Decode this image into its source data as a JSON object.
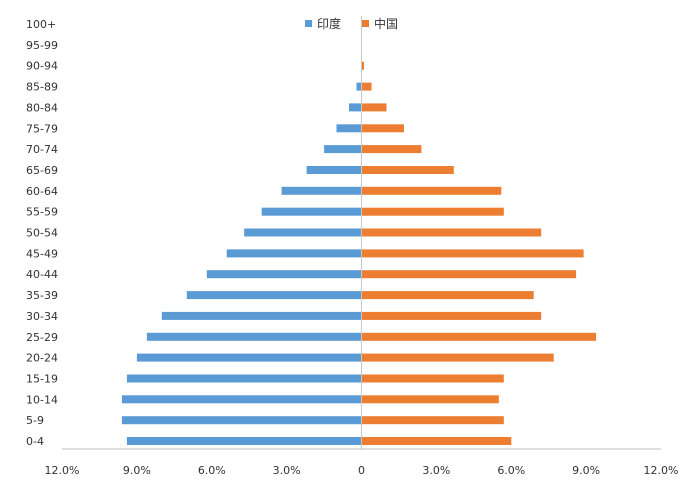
{
  "chart_data": {
    "type": "bar",
    "orientation": "horizontal",
    "categories": [
      "100+",
      "95-99",
      "90-94",
      "85-89",
      "80-84",
      "75-79",
      "70-74",
      "65-69",
      "60-64",
      "55-59",
      "50-54",
      "45-49",
      "40-44",
      "35-39",
      "30-34",
      "25-29",
      "20-24",
      "15-19",
      "10-14",
      "5-9",
      "0-4"
    ],
    "series": [
      {
        "name": "印度",
        "color": "#5b9bd5",
        "values": [
          0.0,
          0.0,
          0.0,
          -0.2,
          -0.5,
          -1.0,
          -1.5,
          -2.2,
          -3.2,
          -4.0,
          -4.7,
          -5.4,
          -6.2,
          -7.0,
          -8.0,
          -8.6,
          -9.0,
          -9.4,
          -9.6,
          -9.6,
          -9.4
        ]
      },
      {
        "name": "中国",
        "color": "#ed7d31",
        "values": [
          0.0,
          0.0,
          0.1,
          0.4,
          1.0,
          1.7,
          2.4,
          3.7,
          5.6,
          5.7,
          7.2,
          8.9,
          8.6,
          6.9,
          7.2,
          9.4,
          7.7,
          5.7,
          5.5,
          5.7,
          6.0
        ]
      }
    ],
    "xlim": [
      -12,
      12
    ],
    "x_ticks": [
      -12,
      -9,
      -6,
      -3,
      0,
      3,
      6,
      9,
      12
    ],
    "x_tick_labels": [
      "12.0%",
      "9.0%",
      "6.0%",
      "3.0%",
      "0",
      "3.0%",
      "6.0%",
      "9.0%",
      "12.0%"
    ],
    "legend_position": "top-center",
    "title": "",
    "xlabel": "",
    "ylabel": "",
    "grid": false
  }
}
